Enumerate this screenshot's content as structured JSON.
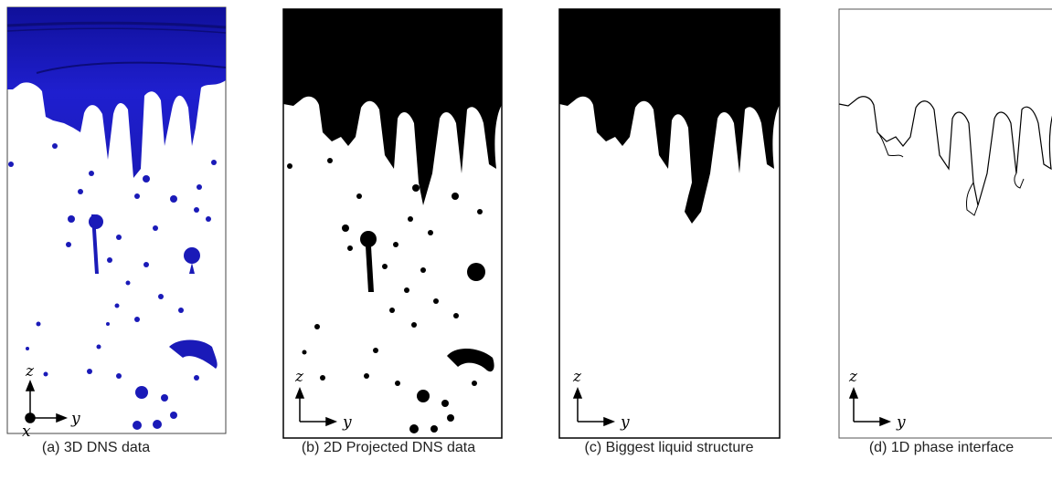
{
  "figure": {
    "panels": [
      {
        "caption": "(a) 3D DNS data",
        "axes": {
          "vertical": "z",
          "horizontal": "y",
          "depth": "x"
        }
      },
      {
        "caption": "(b) 2D Projected DNS data",
        "axes": {
          "vertical": "z",
          "horizontal": "y"
        }
      },
      {
        "caption": "(c) Biggest liquid structure",
        "axes": {
          "vertical": "z",
          "horizontal": "y"
        }
      },
      {
        "caption": "(d) 1D phase interface",
        "axes": {
          "vertical": "z",
          "horizontal": "y"
        }
      }
    ],
    "colors": {
      "liquid_3d": "#1a1ab8",
      "liquid_2d": "#000000",
      "gas": "#ffffff"
    }
  }
}
